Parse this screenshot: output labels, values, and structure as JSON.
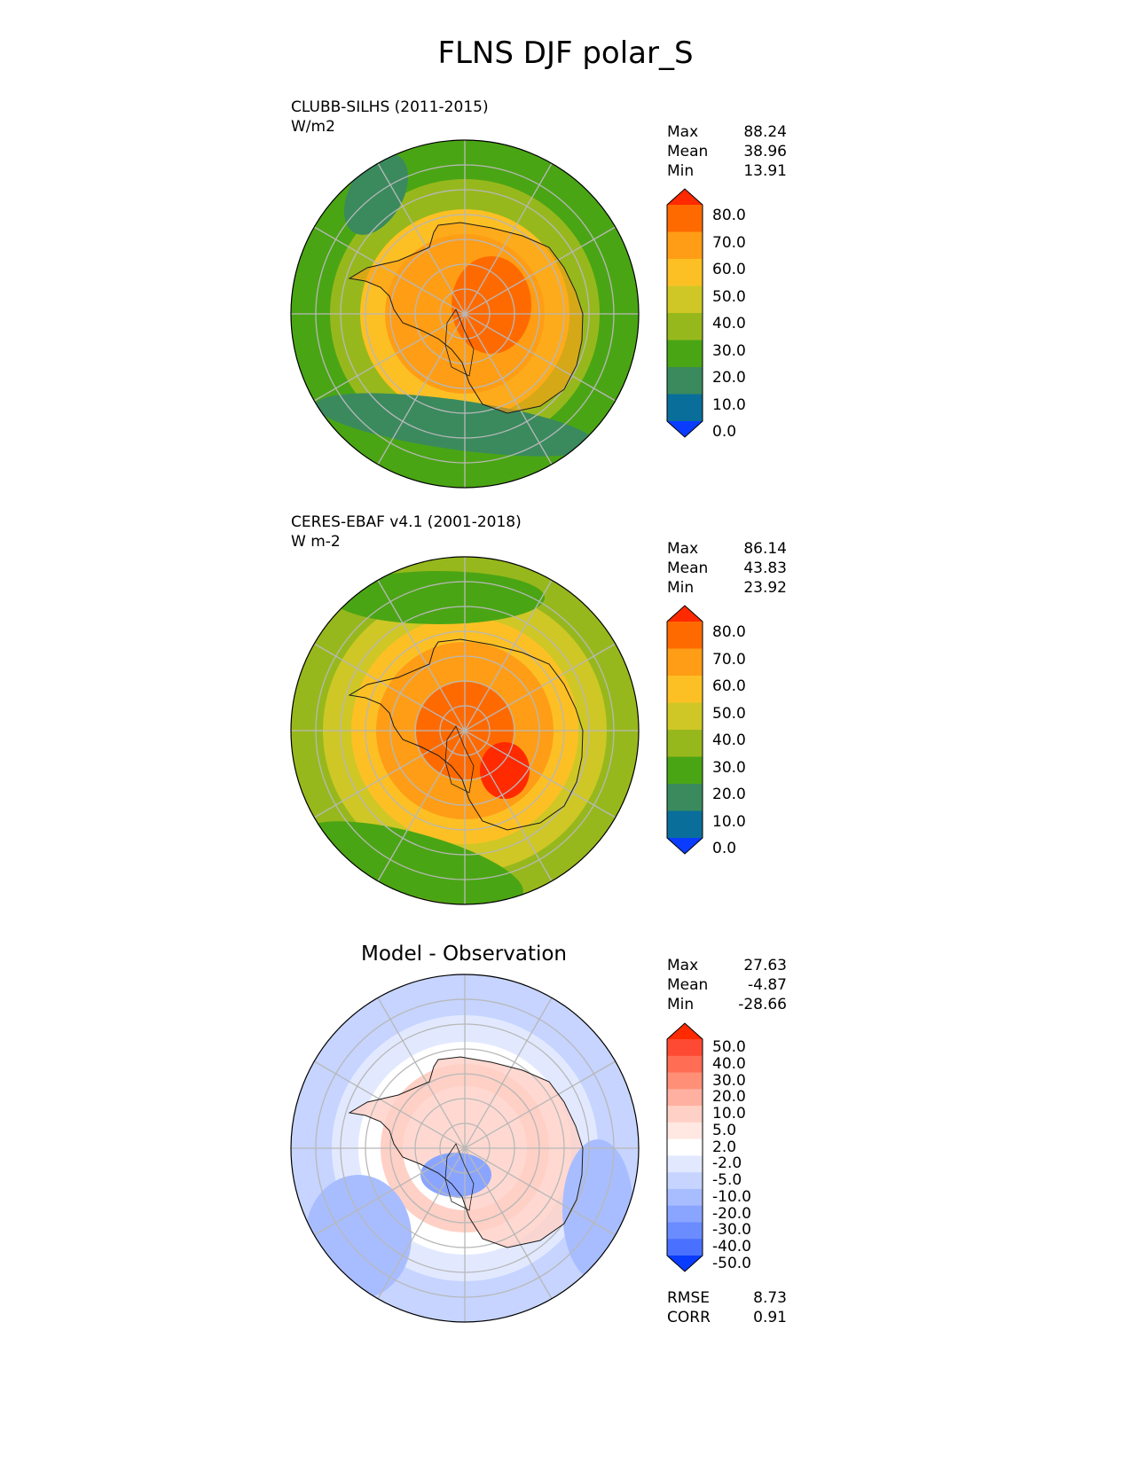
{
  "title": "FLNS DJF polar_S",
  "colors": {
    "frame": "#000000",
    "grid": "#b8b8b8",
    "coast": "#1a1a1a"
  },
  "abs_colorbar": {
    "levels": [
      "80.0",
      "70.0",
      "60.0",
      "50.0",
      "40.0",
      "30.0",
      "20.0",
      "10.0",
      "0.0"
    ],
    "colors": [
      "#ff2a00",
      "#ff6a00",
      "#ff9d16",
      "#fcc025",
      "#cfc726",
      "#97b81c",
      "#4aa514",
      "#3a8a5e",
      "#0a6e9a",
      "#0a3cff"
    ]
  },
  "diff_colorbar": {
    "levels": [
      "50.0",
      "40.0",
      "30.0",
      "20.0",
      "10.0",
      "5.0",
      "2.0",
      "-2.0",
      "-5.0",
      "-10.0",
      "-20.0",
      "-30.0",
      "-40.0",
      "-50.0"
    ],
    "colors": [
      "#ff2a00",
      "#ff4a33",
      "#ff6d55",
      "#ff9077",
      "#ffb0a0",
      "#ffd0c5",
      "#ffe8e2",
      "#ffffff",
      "#e2e9ff",
      "#c6d4ff",
      "#a8bdff",
      "#8aa5ff",
      "#6b8cff",
      "#4a70ff",
      "#0a3cff"
    ]
  },
  "panels": [
    {
      "id": "test",
      "title": "CLUBB-SILHS (2011-2015)",
      "units": "W/m2",
      "stats": {
        "max_label": "Max",
        "max": "88.24",
        "mean_label": "Mean",
        "mean": "38.96",
        "min_label": "Min",
        "min": "13.91"
      }
    },
    {
      "id": "ref",
      "title": "CERES-EBAF v4.1 (2001-2018)",
      "units": "W m-2",
      "stats": {
        "max_label": "Max",
        "max": "86.14",
        "mean_label": "Mean",
        "mean": "43.83",
        "min_label": "Min",
        "min": "23.92"
      }
    },
    {
      "id": "diff",
      "title": "Model - Observation",
      "stats": {
        "max_label": "Max",
        "max": "27.63",
        "mean_label": "Mean",
        "mean": "-4.87",
        "min_label": "Min",
        "min": "-28.66"
      },
      "metrics": {
        "rmse_label": "RMSE",
        "rmse": "8.73",
        "corr_label": "CORR",
        "corr": "0.91"
      }
    }
  ]
}
